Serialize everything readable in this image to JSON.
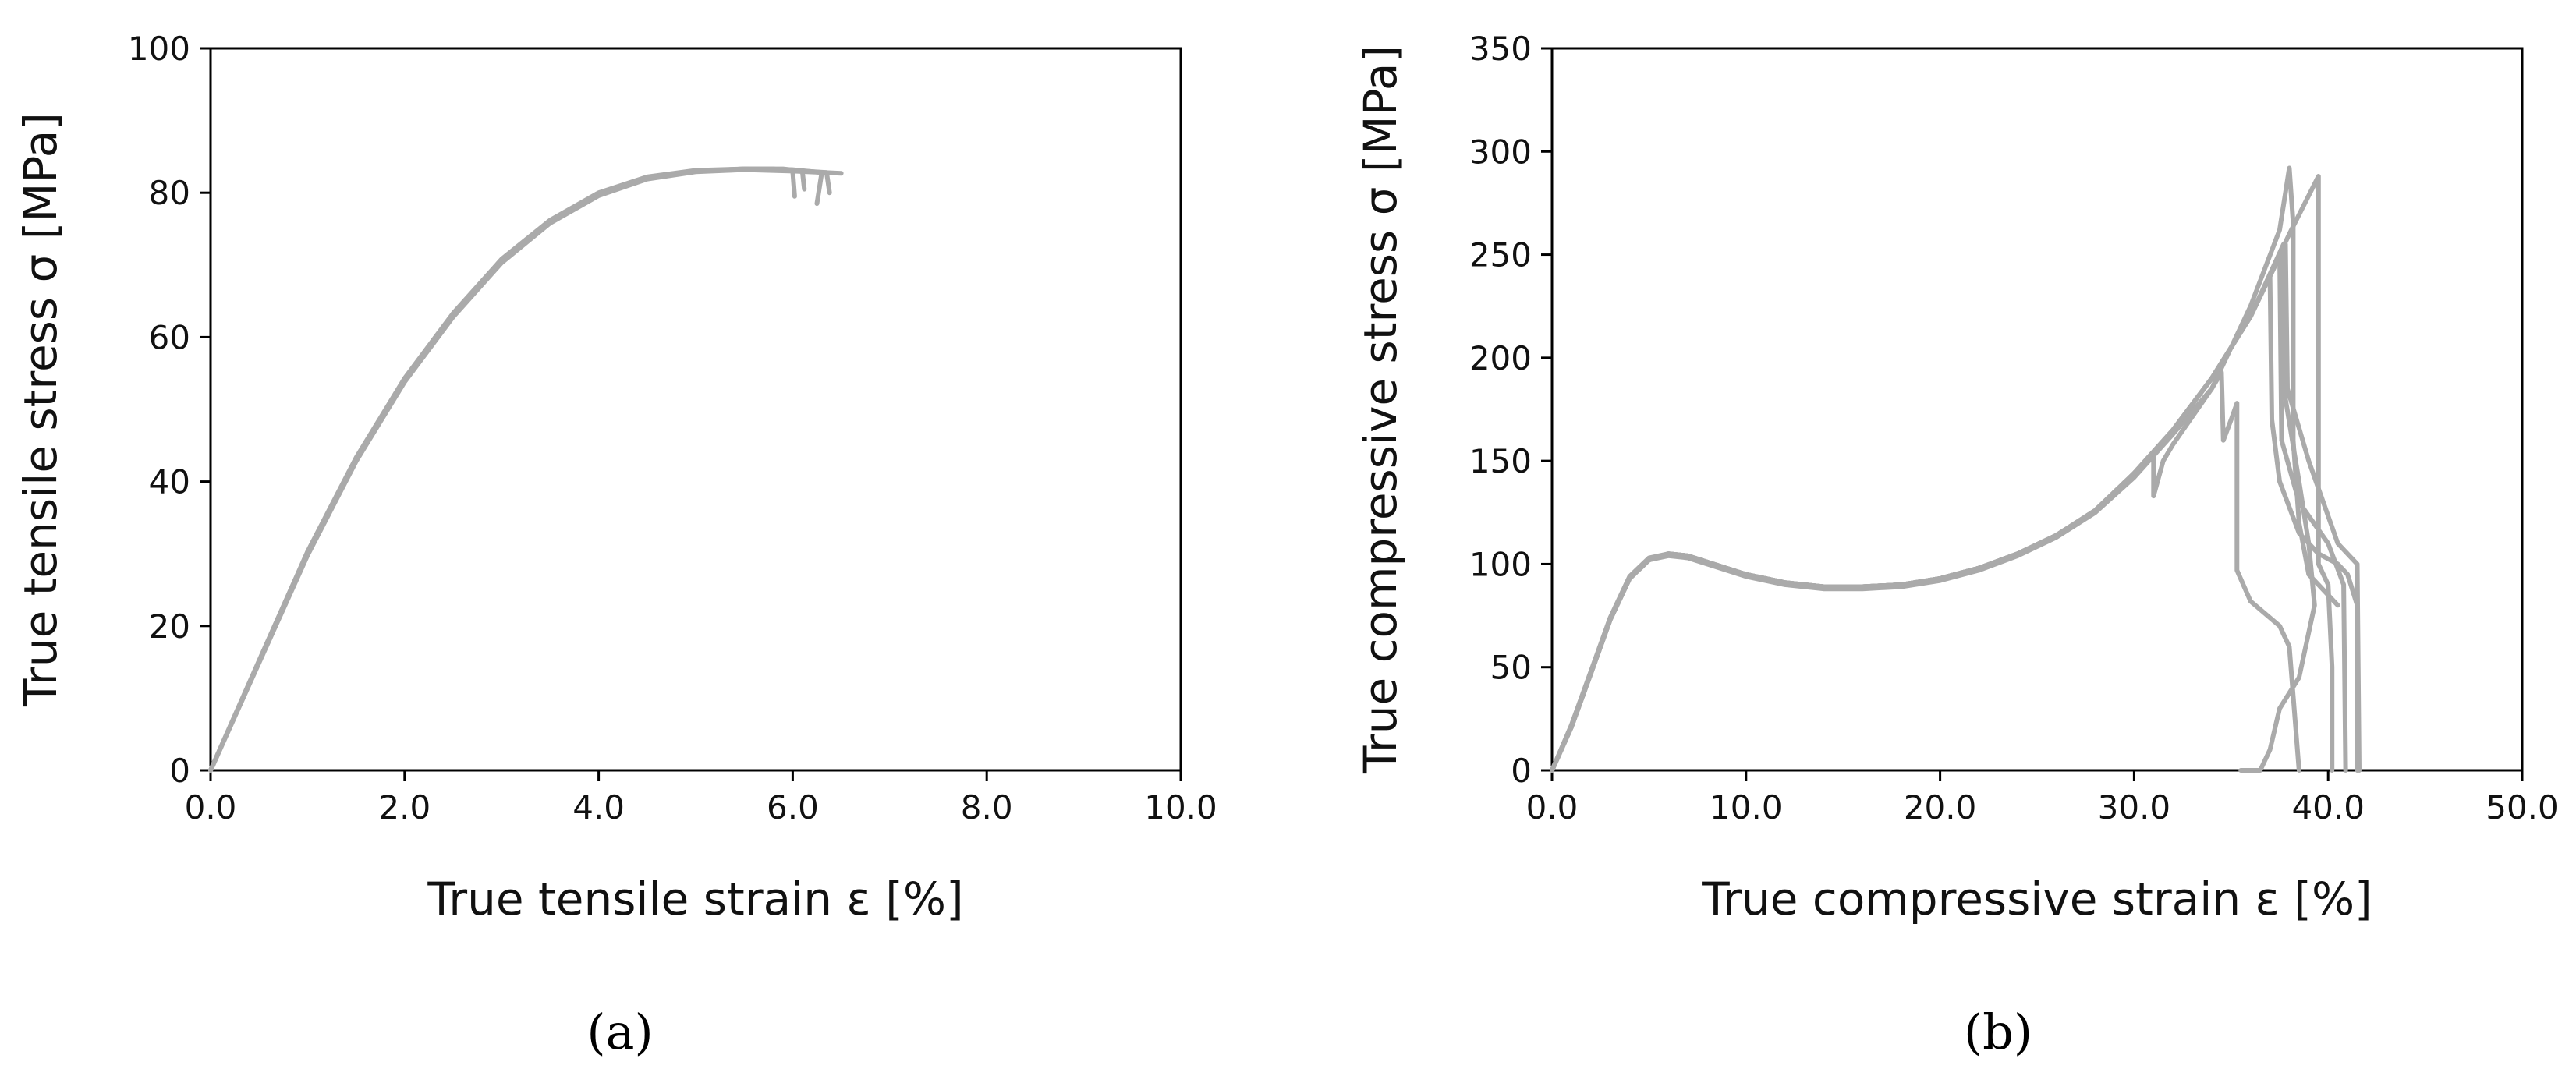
{
  "chart_data": [
    {
      "type": "line",
      "panel_label": "(a)",
      "xlabel": "True tensile strain ε [%]",
      "ylabel": "True tensile stress σ [MPa]",
      "xlim": [
        0,
        10
      ],
      "ylim": [
        0,
        100
      ],
      "xticks": [
        0,
        2,
        4,
        6,
        8,
        10
      ],
      "xtick_labels": [
        "0.0",
        "2.0",
        "4.0",
        "6.0",
        "8.0",
        "10.0"
      ],
      "yticks": [
        0,
        20,
        40,
        60,
        80,
        100
      ],
      "ytick_labels": [
        "0",
        "20",
        "40",
        "60",
        "80",
        "100"
      ],
      "grid": false,
      "line_color": "#aaaaaa",
      "series": [
        {
          "x": [
            0,
            0.5,
            1.0,
            1.5,
            2.0,
            2.5,
            3.0,
            3.5,
            4.0,
            4.5,
            5.0,
            5.5,
            5.8,
            6.0,
            6.02
          ],
          "y": [
            0,
            15,
            30,
            43,
            54,
            63,
            70.5,
            76,
            79.8,
            82,
            83,
            83.3,
            83.3,
            83,
            79.5
          ]
        },
        {
          "x": [
            0,
            0.5,
            1.0,
            1.5,
            2.0,
            2.5,
            3.0,
            3.5,
            4.0,
            4.5,
            5.0,
            5.5,
            5.9,
            6.1,
            6.12
          ],
          "y": [
            0,
            15.2,
            30.3,
            43.3,
            54.3,
            63.3,
            70.8,
            76.2,
            80,
            82.2,
            83.1,
            83.3,
            83.3,
            83,
            80.5
          ]
        },
        {
          "x": [
            0,
            0.5,
            1.0,
            1.5,
            2.0,
            2.5,
            3.0,
            3.5,
            4.0,
            4.5,
            5.0,
            5.5,
            6.0,
            6.3,
            6.25
          ],
          "y": [
            0,
            15.1,
            30.1,
            43.1,
            54.1,
            63.1,
            70.6,
            76.1,
            79.9,
            82.1,
            83,
            83.3,
            83.2,
            82.8,
            78.5
          ]
        },
        {
          "x": [
            0,
            0.5,
            1.0,
            1.5,
            2.0,
            2.5,
            3.0,
            3.5,
            4.0,
            4.5,
            5.0,
            5.5,
            6.0,
            6.35,
            6.38
          ],
          "y": [
            0,
            14.9,
            29.8,
            42.8,
            53.8,
            62.8,
            70.3,
            75.8,
            79.6,
            81.9,
            82.9,
            83.2,
            83.1,
            82.8,
            80
          ]
        },
        {
          "x": [
            0,
            0.5,
            1.0,
            1.5,
            2.0,
            2.5,
            3.0,
            3.5,
            4.0,
            4.5,
            5.0,
            5.5,
            6.0,
            6.5
          ],
          "y": [
            0,
            15,
            30.2,
            43.2,
            54.2,
            63.2,
            70.7,
            76.1,
            79.9,
            82.1,
            83,
            83.2,
            83,
            82.7
          ]
        }
      ]
    },
    {
      "type": "line",
      "panel_label": "(b)",
      "xlabel": "True compressive strain ε [%]",
      "ylabel": "True compressive stress σ [MPa]",
      "xlim": [
        0,
        50
      ],
      "ylim": [
        0,
        350
      ],
      "xticks": [
        0,
        10,
        20,
        30,
        40,
        50
      ],
      "xtick_labels": [
        "0.0",
        "10.0",
        "20.0",
        "30.0",
        "40.0",
        "50.0"
      ],
      "yticks": [
        0,
        50,
        100,
        150,
        200,
        250,
        300,
        350
      ],
      "ytick_labels": [
        "0",
        "50",
        "100",
        "150",
        "200",
        "250",
        "300",
        "350"
      ],
      "grid": false,
      "line_color": "#aaaaaa",
      "series": [
        {
          "x": [
            0,
            1,
            2,
            3,
            4,
            5,
            6,
            7,
            8,
            10,
            12,
            14,
            16,
            18,
            20,
            22,
            24,
            26,
            28,
            30,
            31,
            31.0,
            31.5,
            32,
            34,
            36,
            37.5,
            38,
            38.2,
            38.2,
            38.5,
            39,
            40.5
          ],
          "y": [
            0,
            22,
            48,
            74,
            94,
            103,
            105,
            104,
            101,
            95,
            91,
            89,
            89,
            90,
            93,
            98,
            105,
            114,
            126,
            144,
            152,
            133,
            150,
            158,
            185,
            225,
            262,
            292,
            265,
            160,
            120,
            95,
            80
          ]
        },
        {
          "x": [
            0,
            1,
            2,
            3,
            4,
            5,
            6,
            7,
            8,
            10,
            12,
            14,
            16,
            18,
            20,
            22,
            24,
            26,
            28,
            30,
            32,
            34,
            34.5,
            34.6,
            35,
            35.3,
            35.3,
            36,
            37.5,
            38,
            38.5
          ],
          "y": [
            0,
            21,
            47,
            73,
            93,
            102,
            104,
            103,
            100,
            94,
            90,
            88,
            88,
            89,
            92,
            97,
            104,
            113,
            125,
            142,
            163,
            185,
            193,
            160,
            170,
            178,
            97,
            82,
            70,
            60,
            0
          ]
        },
        {
          "x": [
            0,
            1,
            2,
            3,
            4,
            5,
            6,
            7,
            8,
            10,
            12,
            14,
            16,
            18,
            20,
            22,
            24,
            26,
            28,
            30,
            32,
            34,
            36,
            37,
            37.1,
            37.5,
            38.5,
            39.5,
            40.5,
            41,
            41.5,
            41.5
          ],
          "y": [
            0,
            21,
            47,
            73,
            93,
            102,
            105,
            104,
            101,
            95,
            91,
            89,
            89,
            90,
            93,
            98,
            105,
            114,
            126,
            144,
            165,
            190,
            220,
            240,
            170,
            140,
            115,
            105,
            100,
            95,
            80,
            0
          ]
        },
        {
          "x": [
            0,
            1,
            2,
            3,
            4,
            5,
            6,
            7,
            8,
            10,
            12,
            14,
            16,
            18,
            20,
            22,
            24,
            26,
            28,
            30,
            32,
            34,
            36,
            37.8,
            37.9,
            39,
            40.5,
            41.5,
            41.6
          ],
          "y": [
            0,
            21,
            47,
            73,
            93,
            102,
            105,
            104,
            101,
            95,
            91,
            89,
            89,
            90,
            93,
            98,
            105,
            114,
            126,
            144,
            165,
            190,
            220,
            255,
            185,
            150,
            110,
            100,
            0
          ]
        },
        {
          "x": [
            0,
            1,
            2,
            3,
            4,
            5,
            6,
            7,
            8,
            10,
            12,
            14,
            16,
            18,
            20,
            22,
            24,
            26,
            28,
            30,
            32,
            34,
            36,
            37.5,
            37.6,
            38.5,
            40,
            40.8,
            40.9
          ],
          "y": [
            0,
            21,
            47,
            73,
            93,
            102,
            105,
            104,
            101,
            95,
            91,
            89,
            89,
            90,
            93,
            98,
            105,
            114,
            126,
            144,
            165,
            190,
            220,
            250,
            160,
            130,
            110,
            90,
            0
          ]
        },
        {
          "x": [
            0,
            1,
            2,
            3,
            4,
            5,
            6,
            7,
            8,
            10,
            12,
            14,
            16,
            18,
            20,
            22,
            24,
            26,
            28,
            30,
            32,
            34,
            36,
            38,
            39.5,
            39.5,
            40,
            40.2,
            40.2
          ],
          "y": [
            0,
            21,
            47,
            73,
            93,
            102,
            105,
            104,
            101,
            95,
            91,
            89,
            89,
            90,
            93,
            98,
            105,
            114,
            126,
            144,
            165,
            190,
            220,
            260,
            288,
            100,
            90,
            50,
            0
          ]
        },
        {
          "x": [
            0,
            1,
            2,
            3,
            4,
            5,
            6,
            7,
            8,
            10,
            12,
            14,
            16,
            18,
            20,
            22,
            24,
            26,
            28,
            30,
            32,
            34,
            36,
            37.7,
            37.8,
            38.5,
            39,
            39.3,
            38.5,
            37.5,
            37,
            36.5,
            35.5
          ],
          "y": [
            0,
            21,
            47,
            73,
            93,
            102,
            105,
            104,
            101,
            95,
            91,
            89,
            89,
            90,
            93,
            98,
            105,
            114,
            126,
            144,
            165,
            190,
            220,
            255,
            180,
            140,
            110,
            80,
            45,
            30,
            10,
            0,
            0
          ]
        }
      ]
    }
  ]
}
